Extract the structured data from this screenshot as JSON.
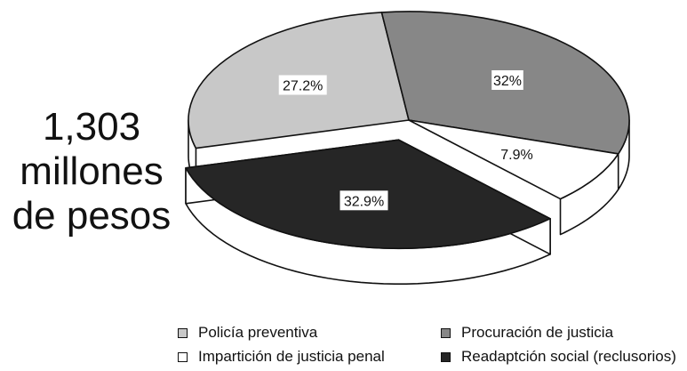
{
  "total": {
    "lines": [
      "1,303",
      "millones",
      "de pesos"
    ]
  },
  "chart_data": {
    "type": "pie",
    "style": "3d-exploded",
    "categories": [
      "Policía preventiva",
      "Procuración de justicia",
      "Impartición de justicia penal",
      "Readaptción social (reclusorios)"
    ],
    "values": [
      27.2,
      32,
      7.9,
      32.9
    ],
    "value_labels": [
      "27.2%",
      "32%",
      "7.9%",
      "32.9%"
    ],
    "colors": [
      "#c8c8c8",
      "#878787",
      "#ffffff",
      "#262626"
    ],
    "exploded": [
      false,
      false,
      false,
      true
    ],
    "legend_position": "bottom-right"
  }
}
